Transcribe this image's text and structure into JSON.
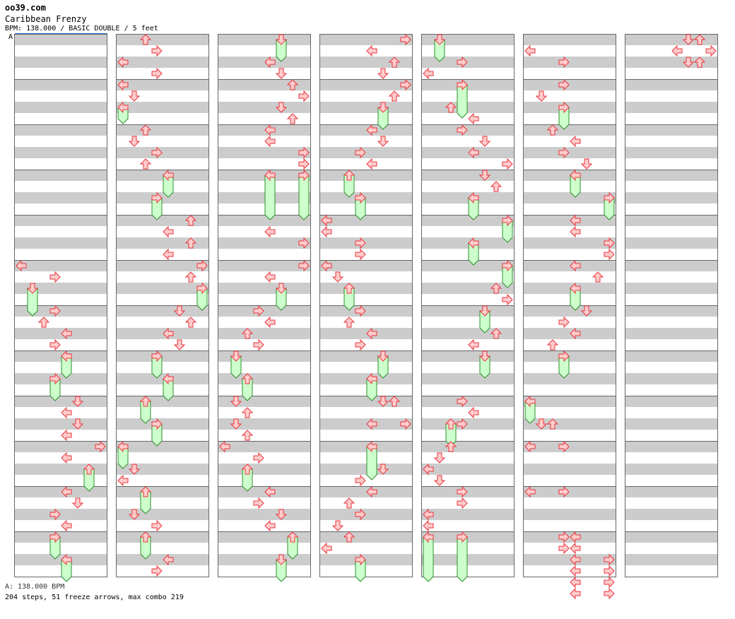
{
  "site": "oo39.com",
  "song_title": "Caribbean Frenzy",
  "meta_line": "BPM: 138.000 / BASIC DOUBLE / 5 feet",
  "bpm_marker": "A",
  "footer_bpm": "A: 138.000 BPM",
  "footer_stats": "204 steps, 51 freeze arrows, max combo 219",
  "colors": {
    "stripe": "#cccccc",
    "border": "#666666",
    "arrow_fill": "#ffcccc",
    "arrow_stroke": "#e8343c",
    "freeze_fill": "#ccffcc",
    "freeze_stroke": "#2f8f2f",
    "bpm_line": "#1e6fd1"
  },
  "chart": {
    "columns": 7,
    "measures_per_column": 12,
    "lanes": 8,
    "lane_directions": [
      "left",
      "down",
      "up",
      "right",
      "left",
      "down",
      "up",
      "right"
    ],
    "steps": [
      {
        "c": 0,
        "m": 5,
        "b": 0,
        "l": 0
      },
      {
        "c": 0,
        "m": 5,
        "b": 1,
        "l": 3
      },
      {
        "c": 0,
        "m": 5,
        "b": 2,
        "l": 1,
        "f": 2
      },
      {
        "c": 0,
        "m": 6,
        "b": 0,
        "l": 3
      },
      {
        "c": 0,
        "m": 6,
        "b": 1,
        "l": 2
      },
      {
        "c": 0,
        "m": 6,
        "b": 2,
        "l": 4
      },
      {
        "c": 0,
        "m": 6,
        "b": 3,
        "l": 3
      },
      {
        "c": 0,
        "m": 7,
        "b": 0,
        "l": 4,
        "f": 1.5
      },
      {
        "c": 0,
        "m": 7,
        "b": 2,
        "l": 3,
        "f": 1.5
      },
      {
        "c": 0,
        "m": 8,
        "b": 0,
        "l": 5
      },
      {
        "c": 0,
        "m": 8,
        "b": 1,
        "l": 4
      },
      {
        "c": 0,
        "m": 8,
        "b": 2,
        "l": 5
      },
      {
        "c": 0,
        "m": 8,
        "b": 3,
        "l": 4
      },
      {
        "c": 0,
        "m": 9,
        "b": 0,
        "l": 7
      },
      {
        "c": 0,
        "m": 9,
        "b": 1,
        "l": 4
      },
      {
        "c": 0,
        "m": 9,
        "b": 2,
        "l": 6,
        "f": 1.5
      },
      {
        "c": 0,
        "m": 10,
        "b": 0,
        "l": 4
      },
      {
        "c": 0,
        "m": 10,
        "b": 1,
        "l": 5
      },
      {
        "c": 0,
        "m": 10,
        "b": 2,
        "l": 3
      },
      {
        "c": 0,
        "m": 10,
        "b": 3,
        "l": 4
      },
      {
        "c": 0,
        "m": 11,
        "b": 0,
        "l": 3,
        "f": 1.5
      },
      {
        "c": 0,
        "m": 11,
        "b": 2,
        "l": 4,
        "f": 1.5
      },
      {
        "c": 1,
        "m": 0,
        "b": 0,
        "l": 2
      },
      {
        "c": 1,
        "m": 0,
        "b": 1,
        "l": 3
      },
      {
        "c": 1,
        "m": 0,
        "b": 2,
        "l": 0
      },
      {
        "c": 1,
        "m": 0,
        "b": 3,
        "l": 3
      },
      {
        "c": 1,
        "m": 1,
        "b": 0,
        "l": 0
      },
      {
        "c": 1,
        "m": 1,
        "b": 1,
        "l": 1
      },
      {
        "c": 1,
        "m": 1,
        "b": 2,
        "l": 0,
        "f": 1
      },
      {
        "c": 1,
        "m": 2,
        "b": 0,
        "l": 2
      },
      {
        "c": 1,
        "m": 2,
        "b": 1,
        "l": 1
      },
      {
        "c": 1,
        "m": 2,
        "b": 2,
        "l": 3
      },
      {
        "c": 1,
        "m": 2,
        "b": 3,
        "l": 2
      },
      {
        "c": 1,
        "m": 3,
        "b": 0,
        "l": 4,
        "f": 1.5
      },
      {
        "c": 1,
        "m": 3,
        "b": 2,
        "l": 3,
        "f": 1.5
      },
      {
        "c": 1,
        "m": 4,
        "b": 0,
        "l": 6
      },
      {
        "c": 1,
        "m": 4,
        "b": 1,
        "l": 4
      },
      {
        "c": 1,
        "m": 4,
        "b": 2,
        "l": 6
      },
      {
        "c": 1,
        "m": 4,
        "b": 3,
        "l": 4
      },
      {
        "c": 1,
        "m": 5,
        "b": 0,
        "l": 7
      },
      {
        "c": 1,
        "m": 5,
        "b": 1,
        "l": 6
      },
      {
        "c": 1,
        "m": 5,
        "b": 2,
        "l": 7,
        "f": 1.5
      },
      {
        "c": 1,
        "m": 6,
        "b": 0,
        "l": 5
      },
      {
        "c": 1,
        "m": 6,
        "b": 1,
        "l": 6
      },
      {
        "c": 1,
        "m": 6,
        "b": 2,
        "l": 4
      },
      {
        "c": 1,
        "m": 6,
        "b": 3,
        "l": 5
      },
      {
        "c": 1,
        "m": 7,
        "b": 0,
        "l": 3,
        "f": 1.5
      },
      {
        "c": 1,
        "m": 7,
        "b": 2,
        "l": 4,
        "f": 1.5
      },
      {
        "c": 1,
        "m": 8,
        "b": 0,
        "l": 2,
        "f": 1.5
      },
      {
        "c": 1,
        "m": 8,
        "b": 2,
        "l": 3,
        "f": 1.5
      },
      {
        "c": 1,
        "m": 9,
        "b": 0,
        "l": 0,
        "f": 1.5
      },
      {
        "c": 1,
        "m": 9,
        "b": 2,
        "l": 1
      },
      {
        "c": 1,
        "m": 9,
        "b": 3,
        "l": 0
      },
      {
        "c": 1,
        "m": 10,
        "b": 0,
        "l": 2,
        "f": 1.5
      },
      {
        "c": 1,
        "m": 10,
        "b": 2,
        "l": 1
      },
      {
        "c": 1,
        "m": 10,
        "b": 3,
        "l": 3
      },
      {
        "c": 1,
        "m": 11,
        "b": 0,
        "l": 2,
        "f": 1.5
      },
      {
        "c": 1,
        "m": 11,
        "b": 2,
        "l": 4
      },
      {
        "c": 1,
        "m": 11,
        "b": 3,
        "l": 3
      },
      {
        "c": 2,
        "m": 0,
        "b": 0,
        "l": 5,
        "f": 1.5
      },
      {
        "c": 2,
        "m": 0,
        "b": 2,
        "l": 4
      },
      {
        "c": 2,
        "m": 0,
        "b": 3,
        "l": 5
      },
      {
        "c": 2,
        "m": 1,
        "b": 0,
        "l": 6
      },
      {
        "c": 2,
        "m": 1,
        "b": 1,
        "l": 7
      },
      {
        "c": 2,
        "m": 1,
        "b": 2,
        "l": 5
      },
      {
        "c": 2,
        "m": 1,
        "b": 3,
        "l": 6
      },
      {
        "c": 2,
        "m": 2,
        "b": 0,
        "l": 4
      },
      {
        "c": 2,
        "m": 2,
        "b": 1,
        "l": 4
      },
      {
        "c": 2,
        "m": 2,
        "b": 2,
        "l": 7
      },
      {
        "c": 2,
        "m": 2,
        "b": 3,
        "l": 7
      },
      {
        "c": 2,
        "m": 3,
        "b": 0,
        "l": 4,
        "f": 3.5
      },
      {
        "c": 2,
        "m": 3,
        "b": 0,
        "l": 7,
        "f": 3.5
      },
      {
        "c": 2,
        "m": 4,
        "b": 1,
        "l": 4
      },
      {
        "c": 2,
        "m": 4,
        "b": 2,
        "l": 7
      },
      {
        "c": 2,
        "m": 5,
        "b": 0,
        "l": 7
      },
      {
        "c": 2,
        "m": 5,
        "b": 1,
        "l": 4
      },
      {
        "c": 2,
        "m": 5,
        "b": 2,
        "l": 5,
        "f": 1.5
      },
      {
        "c": 2,
        "m": 6,
        "b": 0,
        "l": 3
      },
      {
        "c": 2,
        "m": 6,
        "b": 1,
        "l": 4
      },
      {
        "c": 2,
        "m": 6,
        "b": 2,
        "l": 2
      },
      {
        "c": 2,
        "m": 6,
        "b": 3,
        "l": 3
      },
      {
        "c": 2,
        "m": 7,
        "b": 0,
        "l": 1,
        "f": 1.5
      },
      {
        "c": 2,
        "m": 7,
        "b": 2,
        "l": 2,
        "f": 1.5
      },
      {
        "c": 2,
        "m": 8,
        "b": 0,
        "l": 1
      },
      {
        "c": 2,
        "m": 8,
        "b": 1,
        "l": 2
      },
      {
        "c": 2,
        "m": 8,
        "b": 2,
        "l": 1
      },
      {
        "c": 2,
        "m": 8,
        "b": 3,
        "l": 2
      },
      {
        "c": 2,
        "m": 9,
        "b": 0,
        "l": 0
      },
      {
        "c": 2,
        "m": 9,
        "b": 1,
        "l": 3
      },
      {
        "c": 2,
        "m": 9,
        "b": 2,
        "l": 2,
        "f": 1.5
      },
      {
        "c": 2,
        "m": 10,
        "b": 0,
        "l": 4
      },
      {
        "c": 2,
        "m": 10,
        "b": 1,
        "l": 3
      },
      {
        "c": 2,
        "m": 10,
        "b": 2,
        "l": 5
      },
      {
        "c": 2,
        "m": 10,
        "b": 3,
        "l": 4
      },
      {
        "c": 2,
        "m": 11,
        "b": 0,
        "l": 6,
        "f": 1.5
      },
      {
        "c": 2,
        "m": 11,
        "b": 2,
        "l": 5,
        "f": 1.5
      },
      {
        "c": 3,
        "m": 0,
        "b": 0,
        "l": 7
      },
      {
        "c": 3,
        "m": 0,
        "b": 1,
        "l": 4
      },
      {
        "c": 3,
        "m": 0,
        "b": 2,
        "l": 6
      },
      {
        "c": 3,
        "m": 0,
        "b": 3,
        "l": 5
      },
      {
        "c": 3,
        "m": 1,
        "b": 0,
        "l": 7
      },
      {
        "c": 3,
        "m": 1,
        "b": 1,
        "l": 6
      },
      {
        "c": 3,
        "m": 1,
        "b": 2,
        "l": 5,
        "f": 1.5
      },
      {
        "c": 3,
        "m": 2,
        "b": 0,
        "l": 4
      },
      {
        "c": 3,
        "m": 2,
        "b": 1,
        "l": 5
      },
      {
        "c": 3,
        "m": 2,
        "b": 2,
        "l": 3
      },
      {
        "c": 3,
        "m": 2,
        "b": 3,
        "l": 4
      },
      {
        "c": 3,
        "m": 3,
        "b": 0,
        "l": 2,
        "f": 1.5
      },
      {
        "c": 3,
        "m": 3,
        "b": 2,
        "l": 3,
        "f": 1.5
      },
      {
        "c": 3,
        "m": 4,
        "b": 0,
        "l": 0
      },
      {
        "c": 3,
        "m": 4,
        "b": 1,
        "l": 0
      },
      {
        "c": 3,
        "m": 4,
        "b": 2,
        "l": 3
      },
      {
        "c": 3,
        "m": 4,
        "b": 3,
        "l": 3
      },
      {
        "c": 3,
        "m": 5,
        "b": 0,
        "l": 0
      },
      {
        "c": 3,
        "m": 5,
        "b": 1,
        "l": 1
      },
      {
        "c": 3,
        "m": 5,
        "b": 2,
        "l": 2,
        "f": 1.5
      },
      {
        "c": 3,
        "m": 6,
        "b": 0,
        "l": 3
      },
      {
        "c": 3,
        "m": 6,
        "b": 1,
        "l": 2
      },
      {
        "c": 3,
        "m": 6,
        "b": 2,
        "l": 4
      },
      {
        "c": 3,
        "m": 6,
        "b": 3,
        "l": 3
      },
      {
        "c": 3,
        "m": 7,
        "b": 0,
        "l": 5,
        "f": 1.5
      },
      {
        "c": 3,
        "m": 7,
        "b": 2,
        "l": 4,
        "f": 1.5
      },
      {
        "c": 3,
        "m": 8,
        "b": 0,
        "l": 5
      },
      {
        "c": 3,
        "m": 8,
        "b": 0,
        "l": 6
      },
      {
        "c": 3,
        "m": 8,
        "b": 2,
        "l": 4
      },
      {
        "c": 3,
        "m": 8,
        "b": 2,
        "l": 7
      },
      {
        "c": 3,
        "m": 9,
        "b": 0,
        "l": 4,
        "f": 2.5
      },
      {
        "c": 3,
        "m": 9,
        "b": 2,
        "l": 5
      },
      {
        "c": 3,
        "m": 9,
        "b": 3,
        "l": 3
      },
      {
        "c": 3,
        "m": 10,
        "b": 0,
        "l": 4
      },
      {
        "c": 3,
        "m": 10,
        "b": 1,
        "l": 2
      },
      {
        "c": 3,
        "m": 10,
        "b": 2,
        "l": 3
      },
      {
        "c": 3,
        "m": 10,
        "b": 3,
        "l": 1
      },
      {
        "c": 3,
        "m": 11,
        "b": 0,
        "l": 2
      },
      {
        "c": 3,
        "m": 11,
        "b": 1,
        "l": 0
      },
      {
        "c": 3,
        "m": 11,
        "b": 2,
        "l": 3,
        "f": 1.5
      },
      {
        "c": 4,
        "m": 0,
        "b": 0,
        "l": 1,
        "f": 1.5
      },
      {
        "c": 4,
        "m": 0,
        "b": 2,
        "l": 3
      },
      {
        "c": 4,
        "m": 0,
        "b": 3,
        "l": 0
      },
      {
        "c": 4,
        "m": 1,
        "b": 0,
        "l": 3,
        "f": 2.5
      },
      {
        "c": 4,
        "m": 1,
        "b": 2,
        "l": 2
      },
      {
        "c": 4,
        "m": 1,
        "b": 3,
        "l": 4
      },
      {
        "c": 4,
        "m": 2,
        "b": 0,
        "l": 3
      },
      {
        "c": 4,
        "m": 2,
        "b": 1,
        "l": 5
      },
      {
        "c": 4,
        "m": 2,
        "b": 2,
        "l": 4
      },
      {
        "c": 4,
        "m": 2,
        "b": 3,
        "l": 7
      },
      {
        "c": 4,
        "m": 3,
        "b": 0,
        "l": 5
      },
      {
        "c": 4,
        "m": 3,
        "b": 1,
        "l": 6
      },
      {
        "c": 4,
        "m": 3,
        "b": 2,
        "l": 4,
        "f": 1.5
      },
      {
        "c": 4,
        "m": 4,
        "b": 0,
        "l": 7,
        "f": 1.5
      },
      {
        "c": 4,
        "m": 4,
        "b": 2,
        "l": 4,
        "f": 1.5
      },
      {
        "c": 4,
        "m": 5,
        "b": 0,
        "l": 7,
        "f": 1.5
      },
      {
        "c": 4,
        "m": 5,
        "b": 2,
        "l": 6
      },
      {
        "c": 4,
        "m": 5,
        "b": 3,
        "l": 7
      },
      {
        "c": 4,
        "m": 6,
        "b": 0,
        "l": 5,
        "f": 1.5
      },
      {
        "c": 4,
        "m": 6,
        "b": 2,
        "l": 6
      },
      {
        "c": 4,
        "m": 6,
        "b": 3,
        "l": 4
      },
      {
        "c": 4,
        "m": 7,
        "b": 0,
        "l": 5,
        "f": 1.5
      },
      {
        "c": 4,
        "m": 8,
        "b": 0,
        "l": 3
      },
      {
        "c": 4,
        "m": 8,
        "b": 1,
        "l": 4
      },
      {
        "c": 4,
        "m": 8,
        "b": 2,
        "l": 2,
        "f": 1.5
      },
      {
        "c": 4,
        "m": 8,
        "b": 2,
        "l": 3
      },
      {
        "c": 4,
        "m": 9,
        "b": 0,
        "l": 2
      },
      {
        "c": 4,
        "m": 9,
        "b": 1,
        "l": 1
      },
      {
        "c": 4,
        "m": 9,
        "b": 2,
        "l": 0
      },
      {
        "c": 4,
        "m": 9,
        "b": 3,
        "l": 1
      },
      {
        "c": 4,
        "m": 10,
        "b": 0,
        "l": 3
      },
      {
        "c": 4,
        "m": 10,
        "b": 1,
        "l": 3
      },
      {
        "c": 4,
        "m": 10,
        "b": 2,
        "l": 0
      },
      {
        "c": 4,
        "m": 10,
        "b": 3,
        "l": 0
      },
      {
        "c": 4,
        "m": 11,
        "b": 0,
        "l": 0,
        "f": 3.5
      },
      {
        "c": 4,
        "m": 11,
        "b": 0,
        "l": 3,
        "f": 3.5
      },
      {
        "c": 5,
        "m": 0,
        "b": 1,
        "l": 0
      },
      {
        "c": 5,
        "m": 0,
        "b": 2,
        "l": 3
      },
      {
        "c": 5,
        "m": 1,
        "b": 0,
        "l": 3
      },
      {
        "c": 5,
        "m": 1,
        "b": 1,
        "l": 1
      },
      {
        "c": 5,
        "m": 1,
        "b": 2,
        "l": 3,
        "f": 1.5
      },
      {
        "c": 5,
        "m": 2,
        "b": 0,
        "l": 2
      },
      {
        "c": 5,
        "m": 2,
        "b": 1,
        "l": 4
      },
      {
        "c": 5,
        "m": 2,
        "b": 2,
        "l": 3
      },
      {
        "c": 5,
        "m": 2,
        "b": 3,
        "l": 5
      },
      {
        "c": 5,
        "m": 3,
        "b": 0,
        "l": 4,
        "f": 1.5
      },
      {
        "c": 5,
        "m": 3,
        "b": 2,
        "l": 7,
        "f": 1.5
      },
      {
        "c": 5,
        "m": 4,
        "b": 0,
        "l": 4
      },
      {
        "c": 5,
        "m": 4,
        "b": 1,
        "l": 4
      },
      {
        "c": 5,
        "m": 4,
        "b": 2,
        "l": 7
      },
      {
        "c": 5,
        "m": 4,
        "b": 3,
        "l": 7
      },
      {
        "c": 5,
        "m": 5,
        "b": 0,
        "l": 4
      },
      {
        "c": 5,
        "m": 5,
        "b": 1,
        "l": 6
      },
      {
        "c": 5,
        "m": 5,
        "b": 2,
        "l": 4,
        "f": 1.5
      },
      {
        "c": 5,
        "m": 6,
        "b": 0,
        "l": 5
      },
      {
        "c": 5,
        "m": 6,
        "b": 1,
        "l": 3
      },
      {
        "c": 5,
        "m": 6,
        "b": 2,
        "l": 4
      },
      {
        "c": 5,
        "m": 6,
        "b": 3,
        "l": 2
      },
      {
        "c": 5,
        "m": 7,
        "b": 0,
        "l": 3,
        "f": 1.5
      },
      {
        "c": 5,
        "m": 8,
        "b": 0,
        "l": 0,
        "f": 1.5
      },
      {
        "c": 5,
        "m": 8,
        "b": 2,
        "l": 1
      },
      {
        "c": 5,
        "m": 8,
        "b": 2,
        "l": 2
      },
      {
        "c": 5,
        "m": 9,
        "b": 0,
        "l": 0
      },
      {
        "c": 5,
        "m": 9,
        "b": 0,
        "l": 3
      },
      {
        "c": 5,
        "m": 10,
        "b": 0,
        "l": 0
      },
      {
        "c": 5,
        "m": 10,
        "b": 0,
        "l": 3
      },
      {
        "c": 5,
        "m": 11,
        "b": 0,
        "l": 3
      },
      {
        "c": 5,
        "m": 11,
        "b": 0,
        "l": 4
      },
      {
        "c": 5,
        "m": 11,
        "b": 1,
        "l": 3
      },
      {
        "c": 5,
        "m": 11,
        "b": 1,
        "l": 4
      },
      {
        "c": 5,
        "m": 11,
        "b": 2,
        "l": 4
      },
      {
        "c": 5,
        "m": 11,
        "b": 2,
        "l": 7
      },
      {
        "c": 5,
        "m": 11,
        "b": 3,
        "l": 4
      },
      {
        "c": 5,
        "m": 11,
        "b": 3,
        "l": 7
      },
      {
        "c": 5,
        "m": 11,
        "b": 4,
        "l": 4
      },
      {
        "c": 5,
        "m": 11,
        "b": 4,
        "l": 7
      },
      {
        "c": 5,
        "m": 11,
        "b": 5,
        "l": 4
      },
      {
        "c": 5,
        "m": 11,
        "b": 5,
        "l": 7
      },
      {
        "c": 6,
        "m": 0,
        "b": 0,
        "l": 5
      },
      {
        "c": 6,
        "m": 0,
        "b": 0,
        "l": 6
      },
      {
        "c": 6,
        "m": 0,
        "b": 1,
        "l": 4
      },
      {
        "c": 6,
        "m": 0,
        "b": 1,
        "l": 7
      },
      {
        "c": 6,
        "m": 0,
        "b": 2,
        "l": 5
      },
      {
        "c": 6,
        "m": 0,
        "b": 2,
        "l": 6
      }
    ]
  }
}
